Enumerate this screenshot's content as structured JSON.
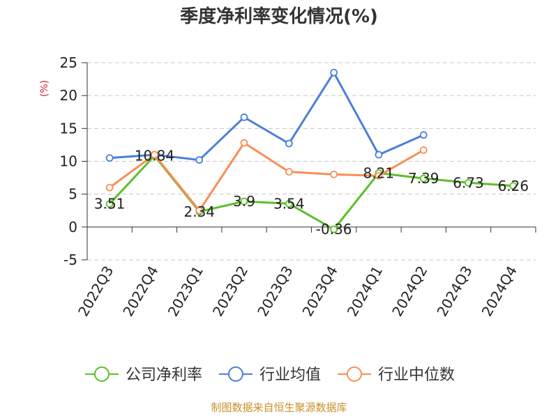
{
  "chart_data": {
    "type": "line",
    "title": "季度净利率变化情况(%)",
    "y_unit": "(%)",
    "categories": [
      "2022Q3",
      "2022Q4",
      "2023Q1",
      "2023Q2",
      "2023Q3",
      "2023Q4",
      "2024Q1",
      "2024Q2",
      "2024Q3",
      "2024Q4"
    ],
    "ylim": [
      -5,
      25
    ],
    "yticks": [
      -5,
      0,
      5,
      10,
      15,
      20,
      25
    ],
    "grid": true,
    "legend_position": "bottom",
    "series": [
      {
        "name": "公司净利率",
        "color": "#5cbf2a",
        "values": [
          3.51,
          10.84,
          2.34,
          3.9,
          3.54,
          -0.36,
          8.21,
          7.39,
          6.73,
          6.26
        ],
        "labels": [
          "3.51",
          "10.84",
          "2.34",
          "3.9",
          "3.54",
          "-0.36",
          "8.21",
          "7.39",
          "6.73",
          "6.26"
        ]
      },
      {
        "name": "行业均值",
        "color": "#4a7fdc",
        "values": [
          10.5,
          11.0,
          10.2,
          16.7,
          12.7,
          23.5,
          11.0,
          14.0,
          null,
          null
        ]
      },
      {
        "name": "行业中位数",
        "color": "#f78e55",
        "values": [
          6.0,
          11.0,
          2.5,
          12.8,
          8.4,
          8.0,
          7.8,
          11.7,
          null,
          null
        ]
      }
    ],
    "source": "制图数据来自恒生聚源数据库",
    "source_color": "#c8902a",
    "unit_color": "#d9232e"
  }
}
